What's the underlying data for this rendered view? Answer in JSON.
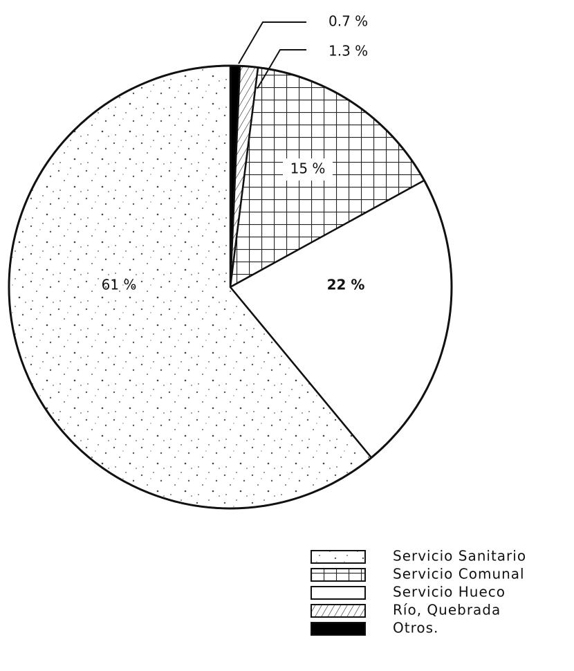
{
  "chart_data": {
    "type": "pie",
    "categories": [
      "Servicio Sanitario",
      "Servicio Comunal",
      "Servicio Hueco",
      "Río, Quebrada",
      "Otros."
    ],
    "values": [
      61,
      15,
      22,
      1.3,
      0.7
    ],
    "value_labels": [
      "61 %",
      "15 %",
      "22 %",
      "1.3 %",
      "0.7 %"
    ],
    "legend": "bottom-right"
  }
}
